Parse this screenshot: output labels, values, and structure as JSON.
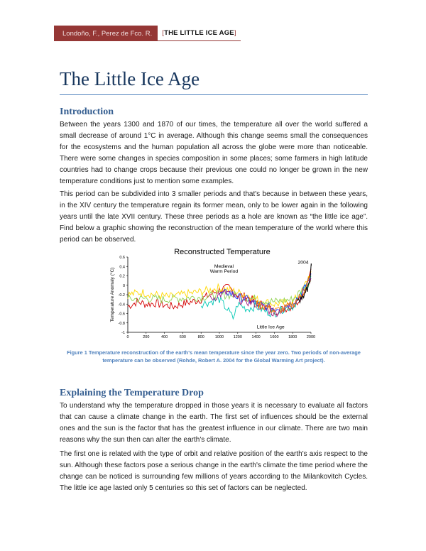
{
  "header": {
    "authors": "Londoño, F., Perez de Fco. R.",
    "open_bracket": "[",
    "short_title": "THE LITTLE ICE AGE",
    "close_bracket": "]"
  },
  "title": "The Little Ice Age",
  "sections": {
    "introduction": {
      "heading": "Introduction",
      "p1": "Between the years 1300 and 1870 of our times, the temperature all over the world suffered a small decrease of around 1°C in average.  Although this change seems small the consequences for the ecosystems and the human population all across the globe were more than noticeable.  There were some changes in species composition in some places; some farmers in high latitude countries had to change crops because their previous one could no longer be grown in the new temperature conditions just to mention some examples.",
      "p2": "This period can be subdivided into 3 smaller periods and that's because in between these years, in the XIV century the temperature regain its former mean, only to be lower again in the following years until the late XVII century.  These three periods as a hole are known as “the little ice age”.  Find below a graphic showing the reconstruction of the mean temperature of the world where this period can be observed."
    },
    "explaining": {
      "heading": "Explaining the Temperature Drop",
      "p1": "To understand why the temperature dropped in those years it is necessary to evaluate all factors that can cause a climate change in the earth.  The first set of influences should be the external ones and the sun is the factor that has the greatest influence in our climate.  There are two main reasons why the sun then can alter the earth's climate.",
      "p2": "The first one is related with the type of orbit and relative position of the earth's axis respect to the sun.  Although these factors pose a serious change in the earth's climate the time period where the change can be noticed is surrounding few millions of years according to the Milankovitch Cycles. The little ice age lasted only 5 centuries so this set of factors can be neglected."
    }
  },
  "figure": {
    "caption": "Figure 1 Temperature reconstruction of the earth's mean temperature since the year zero.  Two periods of non-average temperature can be observed (Rohde, Robert A. 2004 for the Global Warming Art project)."
  },
  "chart_data": {
    "type": "line",
    "title": "Reconstructed Temperature",
    "xlabel": "",
    "ylabel": "Temperature Anomaly (°C)",
    "xlim": [
      0,
      2000
    ],
    "ylim": [
      -1,
      0.6
    ],
    "xticks": [
      "0",
      "200",
      "400",
      "600",
      "800",
      "1000",
      "1200",
      "1400",
      "1600",
      "1800",
      "2000"
    ],
    "yticks": [
      "0.6",
      "0.4",
      "0.2",
      "0",
      "-0.2",
      "-0.4",
      "-0.6",
      "-0.8",
      "-1"
    ],
    "annotations": [
      {
        "text": "Medieval",
        "x": 1050,
        "y": 0.37
      },
      {
        "text": "Warm Period",
        "x": 1050,
        "y": 0.27
      },
      {
        "text": "2004",
        "x": 1915,
        "y": 0.46
      },
      {
        "text": "Little Ice Age",
        "x": 1560,
        "y": -0.92
      }
    ],
    "series": [
      {
        "color": "#d40000",
        "x": [
          0,
          100,
          200,
          300,
          400,
          500,
          600,
          700,
          800,
          900,
          1000,
          1100,
          1200,
          1300,
          1400,
          1500,
          1600,
          1700,
          1800,
          1850,
          1900,
          1950,
          2000
        ],
        "values": [
          -0.45,
          -0.35,
          -0.4,
          -0.38,
          -0.42,
          -0.45,
          -0.4,
          -0.35,
          -0.3,
          -0.2,
          -0.1,
          -0.05,
          -0.2,
          -0.25,
          -0.35,
          -0.45,
          -0.55,
          -0.5,
          -0.45,
          -0.35,
          -0.2,
          0.0,
          0.35
        ]
      },
      {
        "color": "#ffd800",
        "x": [
          0,
          150,
          300,
          450,
          600,
          750,
          900,
          1000,
          1100,
          1200,
          1300,
          1400,
          1500,
          1600,
          1700,
          1800,
          1900,
          2000
        ],
        "values": [
          -0.2,
          -0.15,
          -0.2,
          -0.25,
          -0.2,
          -0.15,
          -0.1,
          -0.05,
          -0.1,
          -0.15,
          -0.2,
          -0.3,
          -0.35,
          -0.4,
          -0.38,
          -0.35,
          -0.15,
          0.3
        ]
      },
      {
        "color": "#8fd14f",
        "x": [
          0,
          200,
          400,
          600,
          800,
          1000,
          1200,
          1400,
          1600,
          1800,
          2000
        ],
        "values": [
          -0.3,
          -0.28,
          -0.3,
          -0.27,
          -0.25,
          -0.2,
          -0.22,
          -0.3,
          -0.35,
          -0.3,
          0.1
        ]
      },
      {
        "color": "#00c8b4",
        "x": [
          800,
          900,
          1000,
          1100,
          1150,
          1200,
          1300,
          1400,
          1500,
          1600,
          1700,
          1800,
          1900,
          2000
        ],
        "values": [
          -0.4,
          -0.35,
          -0.3,
          -0.55,
          -0.7,
          -0.4,
          -0.5,
          -0.45,
          -0.55,
          -0.6,
          -0.5,
          -0.45,
          -0.2,
          0.2
        ]
      },
      {
        "color": "#2040ff",
        "x": [
          1000,
          1100,
          1200,
          1300,
          1400,
          1500,
          1600,
          1700,
          1800,
          1900,
          2000
        ],
        "values": [
          -0.2,
          -0.15,
          -0.25,
          -0.3,
          -0.4,
          -0.45,
          -0.5,
          -0.45,
          -0.35,
          -0.2,
          0.25
        ]
      },
      {
        "color": "#a02080",
        "x": [
          900,
          1000,
          1100,
          1200,
          1300,
          1400,
          1500,
          1600,
          1700,
          1800,
          1900,
          2000
        ],
        "values": [
          -0.3,
          -0.2,
          -0.15,
          -0.3,
          -0.35,
          -0.4,
          -0.5,
          -0.6,
          -0.5,
          -0.4,
          -0.2,
          0.15
        ]
      },
      {
        "color": "#ff8000",
        "x": [
          1400,
          1500,
          1600,
          1700,
          1800,
          1900,
          2000
        ],
        "values": [
          -0.4,
          -0.45,
          -0.55,
          -0.5,
          -0.4,
          -0.2,
          0.2
        ]
      },
      {
        "color": "#000000",
        "x": [
          1850,
          1880,
          1900,
          1920,
          1940,
          1960,
          1980,
          2000,
          2004
        ],
        "values": [
          -0.35,
          -0.3,
          -0.3,
          -0.25,
          -0.1,
          -0.1,
          0.05,
          0.35,
          0.42
        ]
      }
    ]
  }
}
